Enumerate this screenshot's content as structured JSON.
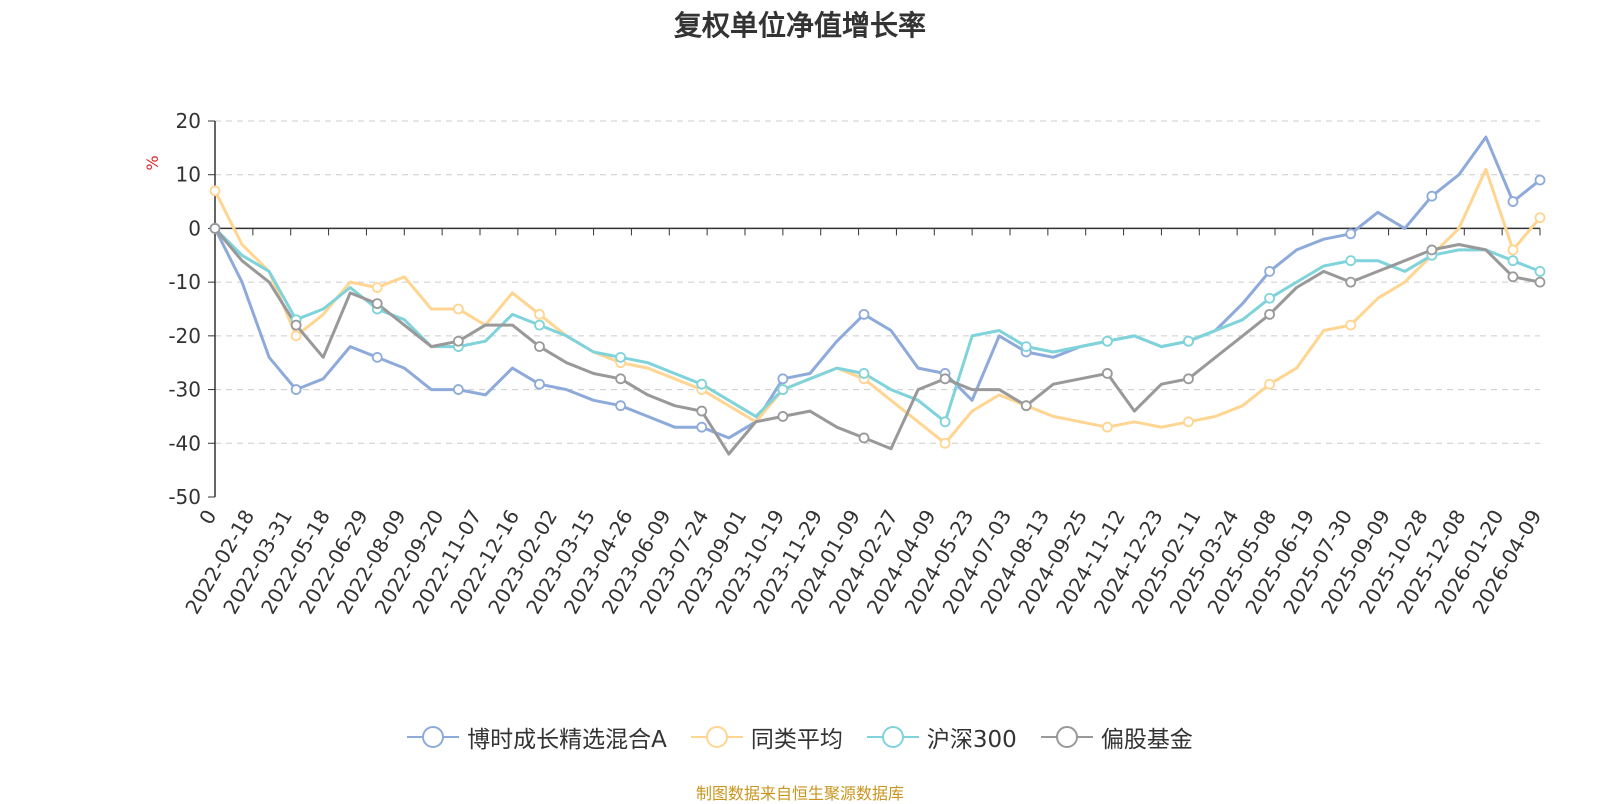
{
  "colors": {
    "fund": "#8eaadb",
    "peer_avg": "#ffd591",
    "csi300": "#7fd3da",
    "equity_fund": "#999999",
    "source": "#c8961e",
    "ylabel": "#e0242a"
  },
  "chart_data": {
    "type": "line",
    "title": "复权单位净值增长率",
    "ylabel": "%",
    "xlabel": "",
    "ylim": [
      -50,
      20
    ],
    "yticks": [
      20,
      10,
      0,
      -10,
      -20,
      -30,
      -40,
      -50
    ],
    "grid": true,
    "legend_position": "bottom",
    "x_tick_labels": [
      "0",
      "2022-02-18",
      "2022-03-31",
      "2022-05-18",
      "2022-06-29",
      "2022-08-09",
      "2022-09-20",
      "2022-11-07",
      "2022-12-16",
      "2023-02-02",
      "2023-03-15",
      "2023-04-26",
      "2023-06-09",
      "2023-07-24",
      "2023-09-01",
      "2023-10-19",
      "2023-11-29",
      "2024-01-09",
      "2024-02-27",
      "2024-04-09",
      "2024-05-23",
      "2024-07-03",
      "2024-08-13",
      "2024-09-25",
      "2024-11-12",
      "2024-12-23",
      "2025-02-11",
      "2025-03-24",
      "2025-05-08",
      "2025-06-19",
      "2025-07-30",
      "2025-09-09",
      "2025-10-28",
      "2025-12-08",
      "2026-01-20",
      "2026-04-09"
    ],
    "series": [
      {
        "name": "博时成长精选混合A",
        "color_key": "fund",
        "values": [
          0,
          -10,
          -24,
          -30,
          -28,
          -22,
          -24,
          -26,
          -30,
          -30,
          -31,
          -26,
          -29,
          -30,
          -32,
          -33,
          -35,
          -37,
          -37,
          -39,
          -36,
          -28,
          -27,
          -21,
          -16,
          -19,
          -26,
          -27,
          -32,
          -20,
          -23,
          -24,
          -22,
          -21,
          -20,
          -22,
          -21,
          -19,
          -14,
          -8,
          -4,
          -2,
          -1,
          3,
          0,
          6,
          10,
          17,
          5,
          9
        ]
      },
      {
        "name": "同类平均",
        "color_key": "peer_avg",
        "values": [
          7,
          -3,
          -8,
          -20,
          -16,
          -10,
          -11,
          -9,
          -15,
          -15,
          -18,
          -12,
          -16,
          -20,
          -23,
          -25,
          -26,
          -28,
          -30,
          -33,
          -36,
          -30,
          -28,
          -26,
          -28,
          -32,
          -36,
          -40,
          -34,
          -31,
          -33,
          -35,
          -36,
          -37,
          -36,
          -37,
          -36,
          -35,
          -33,
          -29,
          -26,
          -19,
          -18,
          -13,
          -10,
          -5,
          0,
          11,
          -4,
          2
        ]
      },
      {
        "name": "沪深300",
        "color_key": "csi300",
        "values": [
          0,
          -5,
          -8,
          -17,
          -15,
          -11,
          -15,
          -17,
          -22,
          -22,
          -21,
          -16,
          -18,
          -20,
          -23,
          -24,
          -25,
          -27,
          -29,
          -32,
          -35,
          -30,
          -28,
          -26,
          -27,
          -30,
          -32,
          -36,
          -20,
          -19,
          -22,
          -23,
          -22,
          -21,
          -20,
          -22,
          -21,
          -19,
          -17,
          -13,
          -10,
          -7,
          -6,
          -6,
          -8,
          -5,
          -4,
          -4,
          -6,
          -8
        ]
      },
      {
        "name": "偏股基金",
        "color_key": "equity_fund",
        "values": [
          0,
          -6,
          -10,
          -18,
          -24,
          -12,
          -14,
          -18,
          -22,
          -21,
          -18,
          -18,
          -22,
          -25,
          -27,
          -28,
          -31,
          -33,
          -34,
          -42,
          -36,
          -35,
          -34,
          -37,
          -39,
          -41,
          -30,
          -28,
          -30,
          -30,
          -33,
          -29,
          -28,
          -27,
          -34,
          -29,
          -28,
          -24,
          -20,
          -16,
          -11,
          -8,
          -10,
          -8,
          -6,
          -4,
          -3,
          -4,
          -9,
          -10
        ]
      }
    ]
  },
  "legend": {
    "items": [
      {
        "label": "博时成长精选混合A",
        "color_key": "fund"
      },
      {
        "label": "同类平均",
        "color_key": "peer_avg"
      },
      {
        "label": "沪深300",
        "color_key": "csi300"
      },
      {
        "label": "偏股基金",
        "color_key": "equity_fund"
      }
    ]
  },
  "source_text": "制图数据来自恒生聚源数据库"
}
